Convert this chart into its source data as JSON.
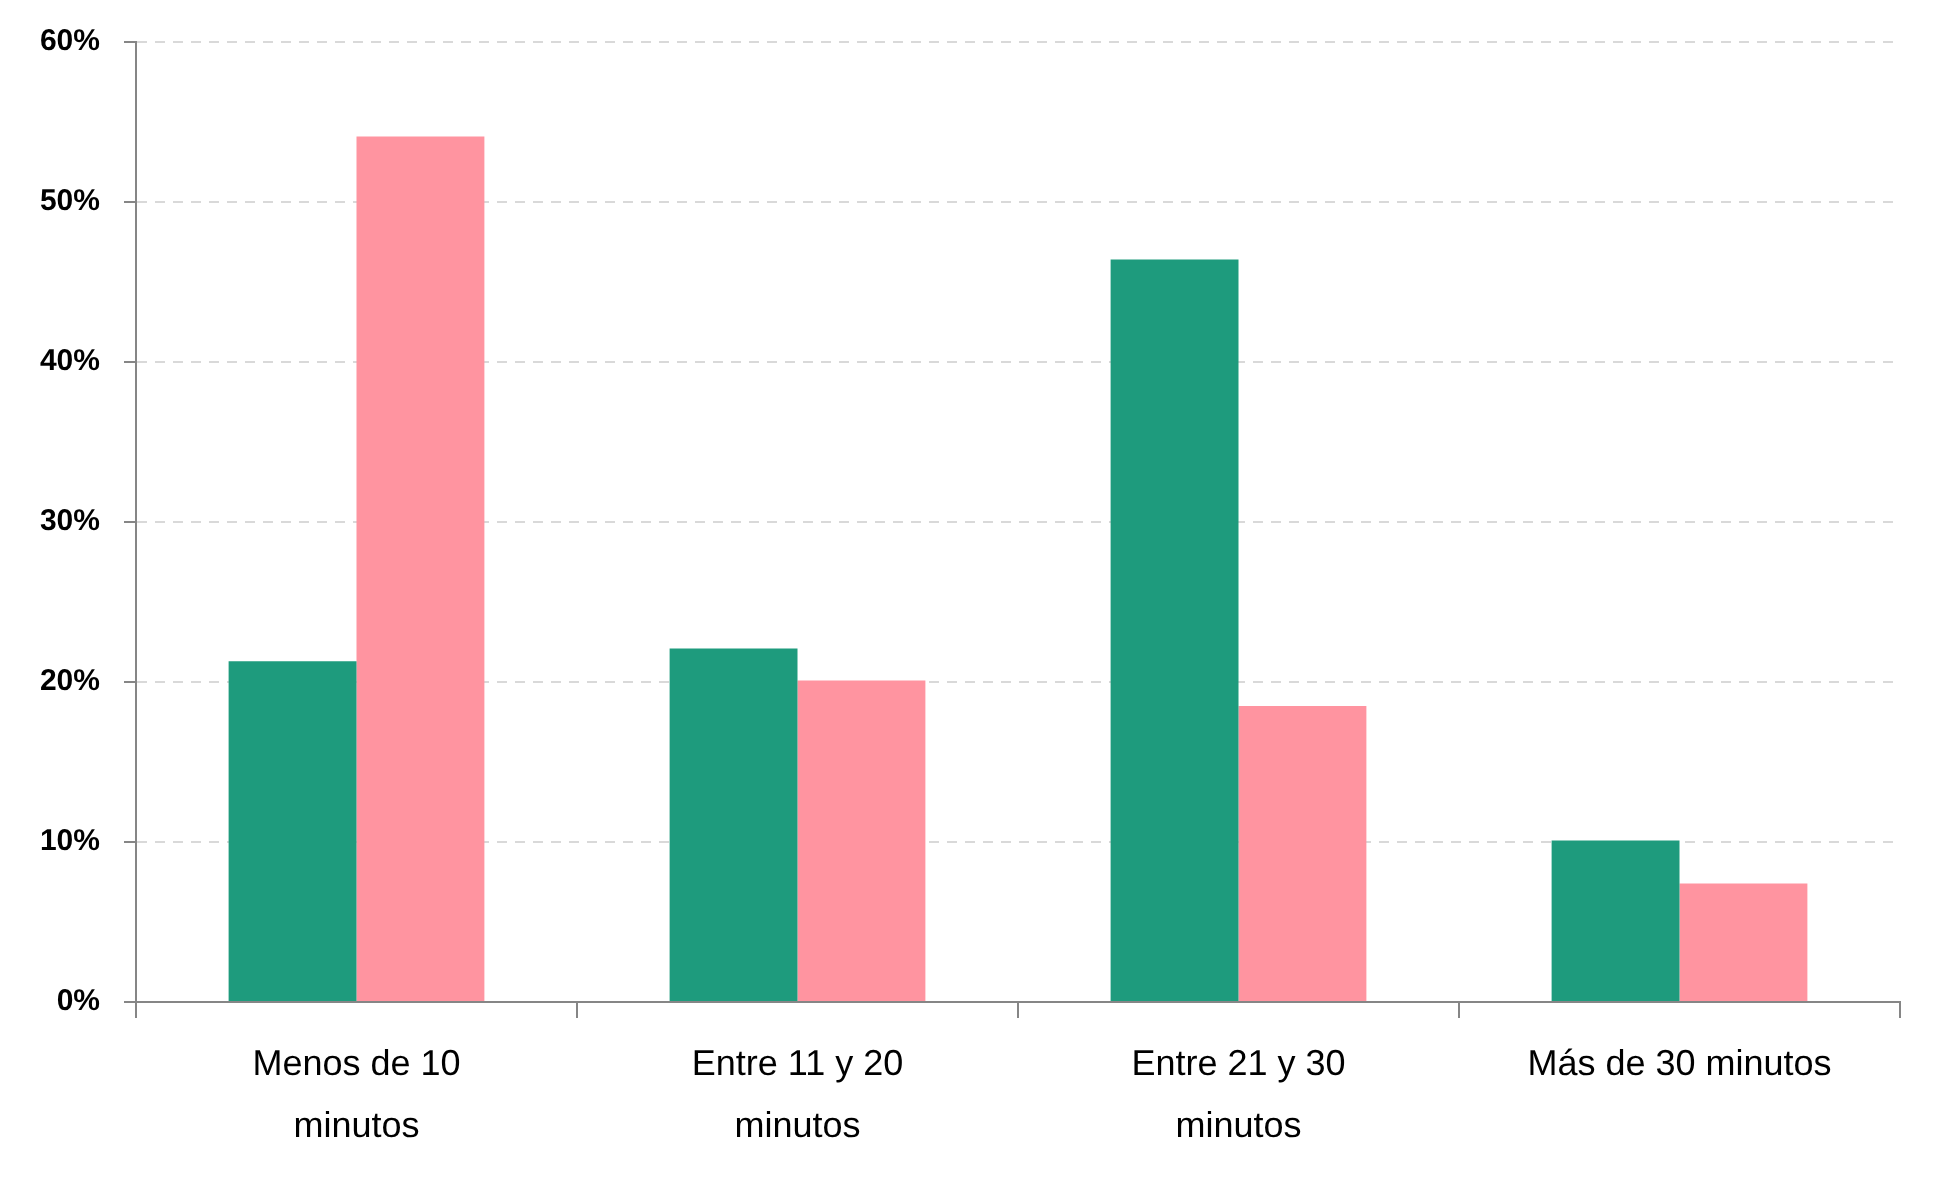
{
  "chart_data": {
    "type": "bar",
    "categories": [
      "Menos de 10 minutos",
      "Entre 11 y 20 minutos",
      "Entre 21 y 30 minutos",
      "Más de 30 minutos"
    ],
    "series": [
      {
        "color": "#1e9b7d",
        "values": [
          21.3,
          22.1,
          46.4,
          10.1
        ]
      },
      {
        "color": "#ff94a0",
        "values": [
          54.1,
          20.1,
          18.5,
          7.4
        ]
      }
    ],
    "ylim": [
      0,
      60
    ],
    "yticks": [
      {
        "value": 0,
        "label": "0%"
      },
      {
        "value": 10,
        "label": "10%"
      },
      {
        "value": 20,
        "label": "20%"
      },
      {
        "value": 30,
        "label": "30%"
      },
      {
        "value": 40,
        "label": "40%"
      },
      {
        "value": 50,
        "label": "50%"
      },
      {
        "value": 60,
        "label": "60%"
      }
    ],
    "grid": "y",
    "legend": false
  }
}
